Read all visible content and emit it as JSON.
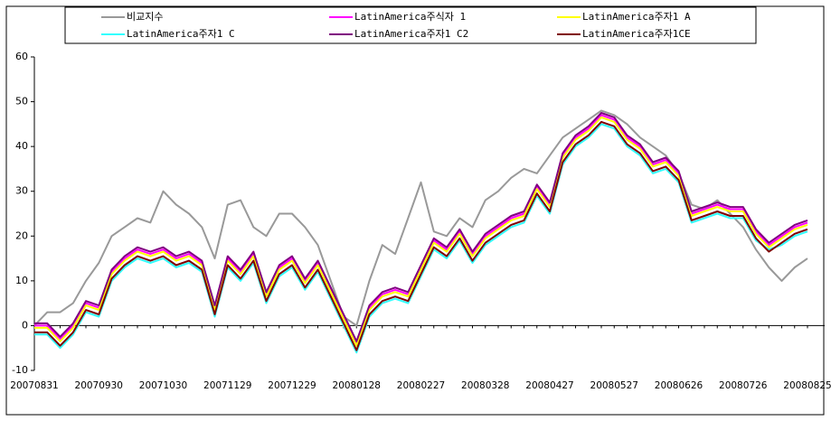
{
  "chart_data": {
    "type": "line",
    "categories": [
      "20070831",
      null,
      null,
      null,
      null,
      "20070930",
      null,
      null,
      null,
      null,
      "20071030",
      null,
      null,
      null,
      null,
      "20071129",
      null,
      null,
      null,
      null,
      "20071229",
      null,
      null,
      null,
      null,
      "20080128",
      null,
      null,
      null,
      null,
      "20080227",
      null,
      null,
      null,
      null,
      "20080328",
      null,
      null,
      null,
      null,
      "20080427",
      null,
      null,
      null,
      null,
      "20080527",
      null,
      null,
      null,
      null,
      "20080626",
      null,
      null,
      null,
      null,
      "20080726",
      null,
      null,
      null,
      null,
      "20080825"
    ],
    "ylim": [
      -10,
      60
    ],
    "yticks": [
      -10,
      0,
      10,
      20,
      30,
      40,
      50,
      60
    ],
    "series": [
      {
        "name": "비교지수",
        "color": "#999999",
        "values": [
          0,
          3,
          3,
          5,
          10,
          14,
          20,
          22,
          24,
          23,
          30,
          27,
          25,
          22,
          15,
          27,
          28,
          22,
          20,
          25,
          25,
          22,
          18,
          10,
          2,
          0,
          10,
          18,
          16,
          24,
          32,
          21,
          20,
          24,
          22,
          28,
          30,
          33,
          35,
          34,
          38,
          42,
          44,
          46,
          48,
          47,
          45,
          42,
          40,
          38,
          34,
          27,
          26,
          28,
          25,
          22,
          17,
          13,
          10,
          13,
          15
        ]
      },
      {
        "name": "LatinAmerica주식자 1",
        "color": "#ff00ff",
        "values": [
          0,
          0,
          -3,
          0,
          5,
          4,
          12,
          15,
          17,
          16,
          17,
          15,
          16,
          14,
          4,
          15,
          12,
          16,
          7,
          13,
          15,
          10,
          14,
          8,
          2,
          -4,
          4,
          7,
          8,
          7,
          13,
          19,
          17,
          21,
          16,
          20,
          22,
          24,
          25,
          31,
          27,
          38,
          42,
          44,
          47,
          46,
          42,
          40,
          36,
          37,
          34,
          25,
          26,
          27,
          26,
          26,
          21,
          18,
          20,
          22,
          23
        ]
      },
      {
        "name": "LatinAmerica주자1 A",
        "color": "#ffff00",
        "values": [
          -0.5,
          -0.5,
          -3.5,
          -0.5,
          4.5,
          3.5,
          11.5,
          14.5,
          16.5,
          15.5,
          16.5,
          14.5,
          15.5,
          13.5,
          3.5,
          14.5,
          11.5,
          15.5,
          6.5,
          12.5,
          14.5,
          9.5,
          13.5,
          7.5,
          1.5,
          -4.5,
          3.5,
          6.5,
          7.5,
          6.5,
          12.5,
          18.5,
          16.5,
          20.5,
          15.5,
          19.5,
          21.5,
          23.5,
          24.5,
          30.5,
          26.5,
          37.5,
          41.5,
          43.5,
          46.5,
          45.5,
          41.5,
          39.5,
          35.5,
          36.5,
          33.5,
          24.5,
          25.5,
          26.5,
          25.5,
          25.5,
          20.5,
          17.5,
          19.5,
          21.5,
          22.5
        ]
      },
      {
        "name": "LatinAmerica주자1 C",
        "color": "#33ffff",
        "values": [
          -2,
          -2,
          -5,
          -2,
          3,
          2,
          10,
          13,
          15,
          14,
          15,
          13,
          14,
          12,
          2,
          13,
          10,
          14,
          5,
          11,
          13,
          8,
          12,
          6,
          0,
          -6,
          2,
          5,
          6,
          5,
          11,
          17,
          15,
          19,
          14,
          18,
          20,
          22,
          23,
          29,
          25,
          36,
          40,
          42,
          45,
          44,
          40,
          38,
          34,
          35,
          32,
          23,
          24,
          25,
          24,
          24,
          19,
          17,
          18,
          20,
          21
        ]
      },
      {
        "name": "LatinAmerica주자1 C2",
        "color": "#800080",
        "values": [
          0.5,
          0.5,
          -2.5,
          0.5,
          5.5,
          4.5,
          12.5,
          15.5,
          17.5,
          16.5,
          17.5,
          15.5,
          16.5,
          14.5,
          4.5,
          15.5,
          12.5,
          16.5,
          7.5,
          13.5,
          15.5,
          10.5,
          14.5,
          8.5,
          2.5,
          -3.5,
          4.5,
          7.5,
          8.5,
          7.5,
          13.5,
          19.5,
          17.5,
          21.5,
          16.5,
          20.5,
          22.5,
          24.5,
          25.5,
          31.5,
          27.5,
          38.5,
          42.5,
          44.5,
          47.5,
          46.5,
          42.5,
          40.5,
          36.5,
          37.5,
          34.5,
          25.5,
          26.5,
          27.5,
          26.5,
          26.5,
          21.5,
          18.5,
          20.5,
          22.5,
          23.5
        ]
      },
      {
        "name": "LatinAmerica주자1CE",
        "color": "#800000",
        "values": [
          -1.5,
          -1.5,
          -4.5,
          -1.5,
          3.5,
          2.5,
          10.5,
          13.5,
          15.5,
          14.5,
          15.5,
          13.5,
          14.5,
          12.5,
          2.5,
          13.5,
          10.5,
          14.5,
          5.5,
          11.5,
          13.5,
          8.5,
          12.5,
          6.5,
          0.5,
          -5.5,
          2.5,
          5.5,
          6.5,
          5.5,
          11.5,
          17.5,
          15.5,
          19.5,
          14.5,
          18.5,
          20.5,
          22.5,
          23.5,
          29.5,
          25.5,
          36.5,
          40.5,
          42.5,
          45.5,
          44.5,
          40.5,
          38.5,
          34.5,
          35.5,
          32.5,
          23.5,
          24.5,
          25.5,
          24.5,
          24.5,
          19.5,
          16.5,
          18.5,
          20.5,
          21.5
        ]
      }
    ]
  }
}
